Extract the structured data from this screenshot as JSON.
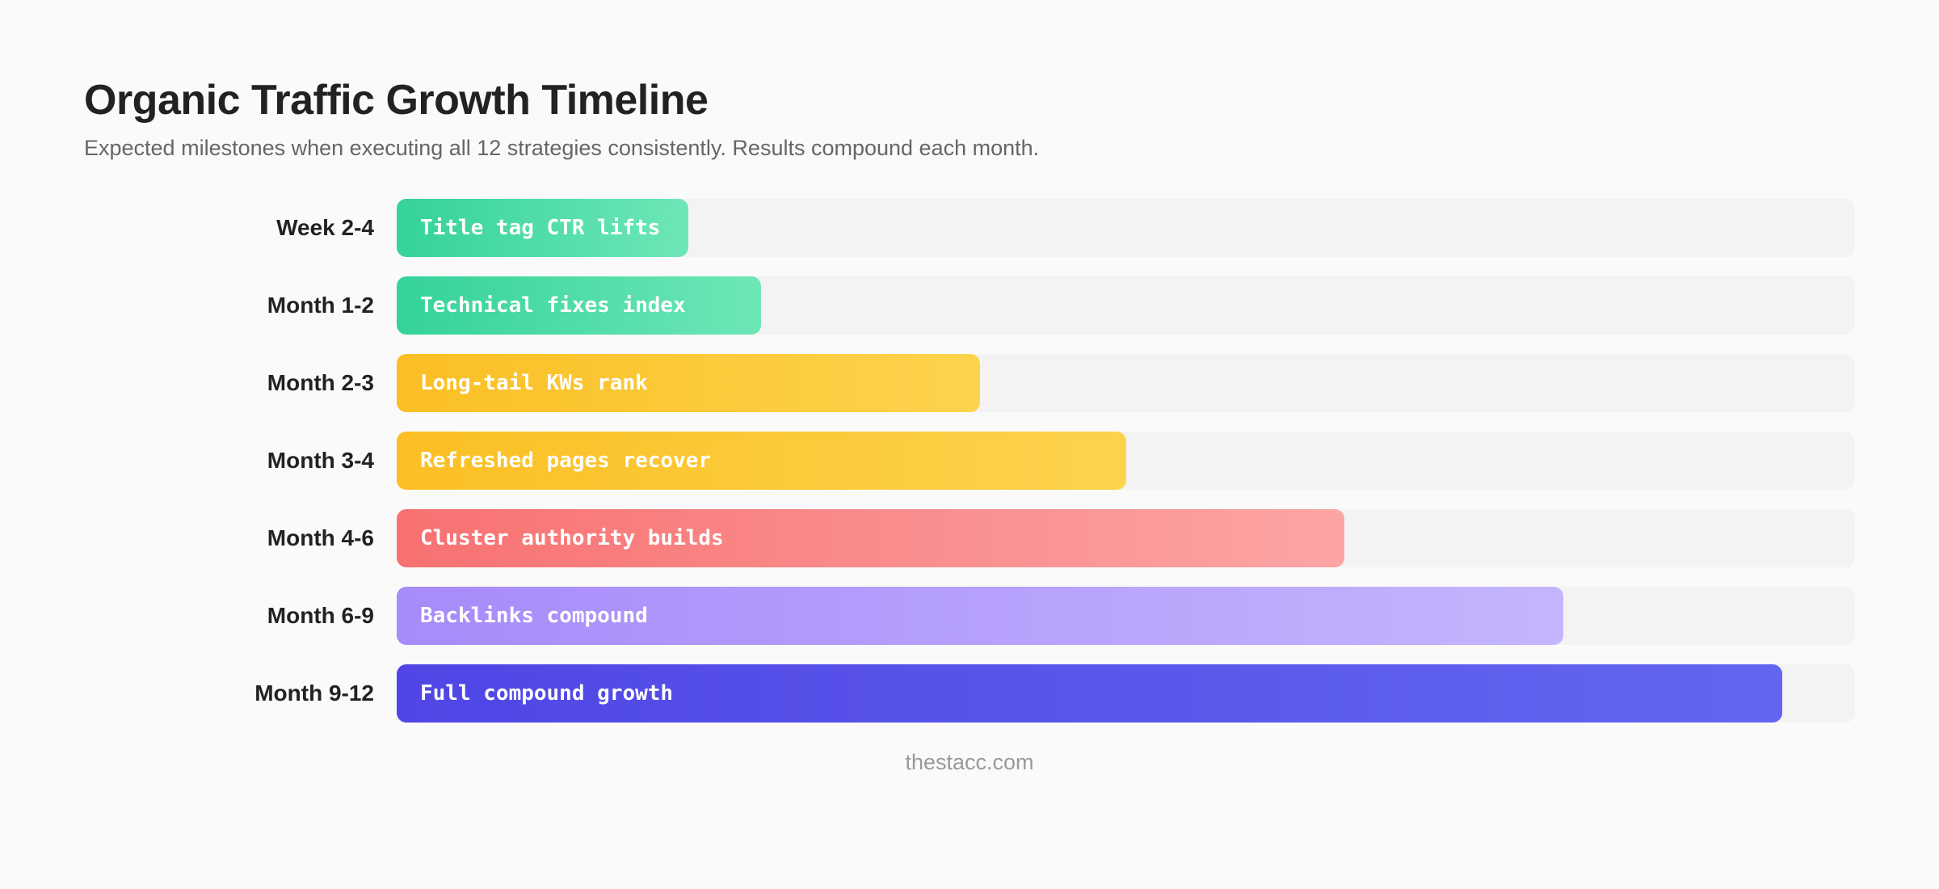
{
  "title": "Organic Traffic Growth Timeline",
  "subtitle": "Expected milestones when executing all 12 strategies consistently. Results compound each month.",
  "footer": "thestacc.com",
  "chart_data": {
    "type": "bar",
    "orientation": "horizontal",
    "title": "Organic Traffic Growth Timeline",
    "xlim": [
      0,
      100
    ],
    "grid": false,
    "categories": [
      "Week 2-4",
      "Month 1-2",
      "Month 2-3",
      "Month 3-4",
      "Month 4-6",
      "Month 6-9",
      "Month 9-12"
    ],
    "values": [
      20,
      25,
      40,
      50,
      65,
      80,
      95
    ],
    "bar_labels": [
      "Title tag CTR lifts",
      "Technical fixes index",
      "Long-tail KWs rank",
      "Refreshed pages recover",
      "Cluster authority builds",
      "Backlinks compound",
      "Full compound growth"
    ],
    "colors": [
      [
        "#34d399",
        "#6ee7b7"
      ],
      [
        "#34d399",
        "#6ee7b7"
      ],
      [
        "#fbbf24",
        "#fcd34d"
      ],
      [
        "#fbbf24",
        "#fcd34d"
      ],
      [
        "#f87171",
        "#fca5a5"
      ],
      [
        "#a78bfa",
        "#c4b5fd"
      ],
      [
        "#4f46e5",
        "#6366f1"
      ]
    ]
  }
}
